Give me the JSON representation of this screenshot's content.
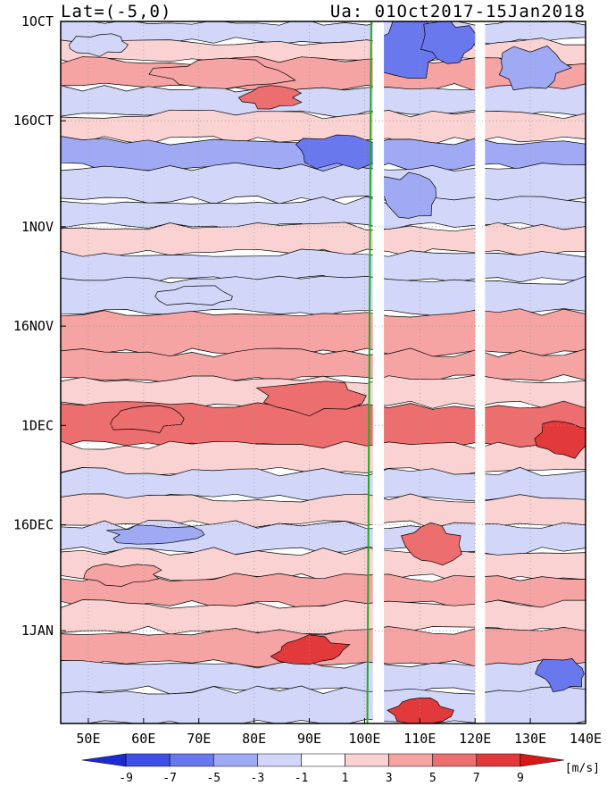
{
  "chart_data": {
    "type": "heatmap",
    "title_left": "Lat=(-5,0)",
    "title_right": "Ua: 01Oct2017-15Jan2018",
    "x_ticks": [
      "50E",
      "60E",
      "70E",
      "80E",
      "90E",
      "100E",
      "110E",
      "120E",
      "130E",
      "140E"
    ],
    "x_tick_values": [
      50,
      60,
      70,
      80,
      90,
      100,
      110,
      120,
      130,
      140
    ],
    "xlim": [
      45,
      140
    ],
    "y_ticks": [
      "1OCT",
      "16OCT",
      "1NOV",
      "16NOV",
      "1DEC",
      "16DEC",
      "1JAN"
    ],
    "y_tick_days": [
      0,
      15,
      31,
      46,
      61,
      76,
      92
    ],
    "ylim_days": [
      0,
      106
    ],
    "grid": true,
    "reference_line": {
      "description": "green line",
      "lon_start": 100.5,
      "lon_end": 101.2,
      "color": "#22aa22"
    },
    "colorbar": {
      "levels": [
        "-9",
        "-7",
        "-5",
        "-3",
        "-1",
        "1",
        "3",
        "5",
        "7",
        "9"
      ],
      "colors": [
        "#1c2ad6",
        "#4050e6",
        "#6a78ee",
        "#a0aaf4",
        "#d2d7fa",
        "#ffffff",
        "#fbd2d2",
        "#f5a3a3",
        "#ec6e6e",
        "#e23a3a",
        "#d81818"
      ],
      "unit": "[m/s]"
    },
    "bands": [
      {
        "d0": 0,
        "d1": 3,
        "v": -3
      },
      {
        "d0": 3,
        "d1": 6,
        "v": 1.5
      },
      {
        "d0": 6,
        "d1": 10,
        "v": 3.5
      },
      {
        "d0": 10,
        "d1": 14,
        "v": -1.5
      },
      {
        "d0": 14,
        "d1": 18,
        "v": 2
      },
      {
        "d0": 18,
        "d1": 22,
        "v": -4
      },
      {
        "d0": 22,
        "d1": 27,
        "v": -3
      },
      {
        "d0": 27,
        "d1": 31,
        "v": -1.5
      },
      {
        "d0": 31,
        "d1": 35,
        "v": 1.5
      },
      {
        "d0": 35,
        "d1": 39,
        "v": -2
      },
      {
        "d0": 39,
        "d1": 44,
        "v": -1.5
      },
      {
        "d0": 44,
        "d1": 50,
        "v": 3.5
      },
      {
        "d0": 50,
        "d1": 54,
        "v": 4
      },
      {
        "d0": 54,
        "d1": 58,
        "v": 2
      },
      {
        "d0": 58,
        "d1": 64,
        "v": 5
      },
      {
        "d0": 64,
        "d1": 68,
        "v": 2
      },
      {
        "d0": 68,
        "d1": 72,
        "v": -1.5
      },
      {
        "d0": 72,
        "d1": 76,
        "v": 1.5
      },
      {
        "d0": 76,
        "d1": 80,
        "v": -2.5
      },
      {
        "d0": 80,
        "d1": 84,
        "v": 1.5
      },
      {
        "d0": 84,
        "d1": 88,
        "v": 3
      },
      {
        "d0": 88,
        "d1": 92,
        "v": 2
      },
      {
        "d0": 92,
        "d1": 97,
        "v": 4.5
      },
      {
        "d0": 97,
        "d1": 101,
        "v": -1.5
      },
      {
        "d0": 101,
        "d1": 106,
        "v": -3
      }
    ],
    "blobs": [
      {
        "lon": 52,
        "d0": 2,
        "d1": 5,
        "lw": 6,
        "v": -3
      },
      {
        "lon": 75,
        "d0": 6,
        "d1": 10,
        "lw": 14,
        "v": 4
      },
      {
        "lon": 95,
        "d0": 17,
        "d1": 22,
        "lw": 10,
        "v": -6
      },
      {
        "lon": 108,
        "d0": 0,
        "d1": 8,
        "lw": 8,
        "v": -7
      },
      {
        "lon": 115,
        "d0": 0,
        "d1": 6,
        "lw": 6,
        "v": -6
      },
      {
        "lon": 130,
        "d0": 4,
        "d1": 10,
        "lw": 8,
        "v": -4
      },
      {
        "lon": 108,
        "d0": 23,
        "d1": 30,
        "lw": 6,
        "v": -4
      },
      {
        "lon": 83,
        "d0": 10,
        "d1": 13,
        "lw": 6,
        "v": 5
      },
      {
        "lon": 70,
        "d0": 40,
        "d1": 43,
        "lw": 8,
        "v": -3
      },
      {
        "lon": 90,
        "d0": 54,
        "d1": 59,
        "lw": 10,
        "v": 5
      },
      {
        "lon": 60,
        "d0": 58,
        "d1": 62,
        "lw": 8,
        "v": 6
      },
      {
        "lon": 136,
        "d0": 60,
        "d1": 66,
        "lw": 6,
        "v": 7
      },
      {
        "lon": 112,
        "d0": 76,
        "d1": 82,
        "lw": 6,
        "v": 6
      },
      {
        "lon": 90,
        "d0": 93,
        "d1": 97,
        "lw": 8,
        "v": 7
      },
      {
        "lon": 110,
        "d0": 102,
        "d1": 106,
        "lw": 6,
        "v": 7
      },
      {
        "lon": 136,
        "d0": 96,
        "d1": 101,
        "lw": 5,
        "v": -6
      },
      {
        "lon": 62,
        "d0": 76,
        "d1": 79,
        "lw": 10,
        "v": -4
      },
      {
        "lon": 56,
        "d0": 82,
        "d1": 85,
        "lw": 8,
        "v": 3
      }
    ],
    "missing_columns": [
      {
        "lon0": 101.5,
        "lon1": 103.5
      },
      {
        "lon0": 120.0,
        "lon1": 121.8
      }
    ]
  }
}
